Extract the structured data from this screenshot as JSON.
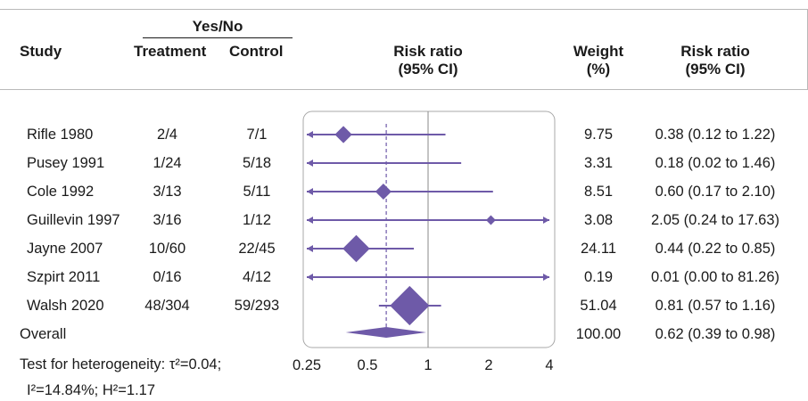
{
  "header": {
    "study": "Study",
    "yes_no": "Yes/No",
    "treatment": "Treatment",
    "control": "Control",
    "risk_ratio_line1": "Risk ratio",
    "risk_ratio_line2": "(95% CI)",
    "weight_line1": "Weight",
    "weight_line2": "(%)",
    "rr_ci_line1": "Risk ratio",
    "rr_ci_line2": "(95% CI)"
  },
  "rows": [
    {
      "study": "Rifle 1980",
      "treatment": "2/4",
      "control": "7/1",
      "weight": "9.75",
      "rr_text": "0.38 (0.12 to 1.22)"
    },
    {
      "study": "Pusey 1991",
      "treatment": "1/24",
      "control": "5/18",
      "weight": "3.31",
      "rr_text": "0.18 (0.02 to 1.46)"
    },
    {
      "study": "Cole 1992",
      "treatment": "3/13",
      "control": "5/11",
      "weight": "8.51",
      "rr_text": "0.60 (0.17 to 2.10)"
    },
    {
      "study": "Guillevin 1997",
      "treatment": "3/16",
      "control": "1/12",
      "weight": "3.08",
      "rr_text": "2.05 (0.24 to 17.63)"
    },
    {
      "study": "Jayne 2007",
      "treatment": "10/60",
      "control": "22/45",
      "weight": "24.11",
      "rr_text": "0.44 (0.22 to 0.85)"
    },
    {
      "study": "Szpirt 2011",
      "treatment": "0/16",
      "control": "4/12",
      "weight": "0.19",
      "rr_text": "0.01 (0.00 to 81.26)"
    },
    {
      "study": "Walsh 2020",
      "treatment": "48/304",
      "control": "59/293",
      "weight": "51.04",
      "rr_text": "0.81 (0.57 to 1.16)"
    }
  ],
  "overall": {
    "label": "Overall",
    "weight": "100.00",
    "rr_text": "0.62 (0.39 to 0.98)"
  },
  "heterogeneity": {
    "line1": "Test for heterogeneity: τ²=0.04;",
    "line2": "I²=14.84%; H²=1.17"
  },
  "chart_data": {
    "type": "forest",
    "x_scale": "log",
    "xlim": [
      0.25,
      4
    ],
    "x_ticks": [
      0.25,
      0.5,
      1,
      2,
      4
    ],
    "x_tick_labels": [
      "0.25",
      "0.5",
      "1",
      "2",
      "4"
    ],
    "null_line": 1,
    "pooled_reference_line": 0.62,
    "marker_color": "#6e5aa8",
    "studies": [
      {
        "name": "Rifle 1980",
        "rr": 0.38,
        "lo": 0.12,
        "hi": 1.22,
        "weight": 9.75
      },
      {
        "name": "Pusey 1991",
        "rr": 0.18,
        "lo": 0.02,
        "hi": 1.46,
        "weight": 3.31
      },
      {
        "name": "Cole 1992",
        "rr": 0.6,
        "lo": 0.17,
        "hi": 2.1,
        "weight": 8.51
      },
      {
        "name": "Guillevin 1997",
        "rr": 2.05,
        "lo": 0.24,
        "hi": 17.63,
        "weight": 3.08
      },
      {
        "name": "Jayne 2007",
        "rr": 0.44,
        "lo": 0.22,
        "hi": 0.85,
        "weight": 24.11
      },
      {
        "name": "Szpirt 2011",
        "rr": 0.01,
        "lo": 0.0,
        "hi": 81.26,
        "weight": 0.19
      },
      {
        "name": "Walsh 2020",
        "rr": 0.81,
        "lo": 0.57,
        "hi": 1.16,
        "weight": 51.04
      }
    ],
    "overall": {
      "rr": 0.62,
      "lo": 0.39,
      "hi": 0.98,
      "weight": 100.0
    }
  }
}
